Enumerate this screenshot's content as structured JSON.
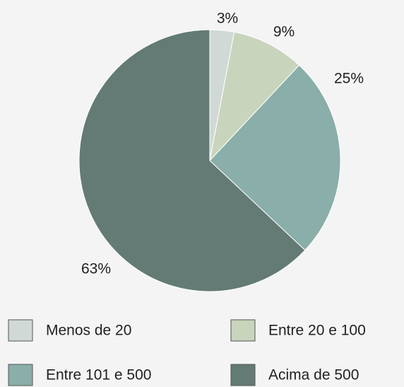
{
  "chart_data": {
    "type": "pie",
    "categories": [
      "Menos de 20",
      "Entre 20 e 100",
      "Entre 101 e 500",
      "Acima de 500"
    ],
    "values": [
      3,
      9,
      25,
      63
    ],
    "value_labels": [
      "3%",
      "9%",
      "25%",
      "63%"
    ],
    "colors": [
      "#d0d9d6",
      "#c9d4bc",
      "#8aaea9",
      "#637b74"
    ]
  }
}
